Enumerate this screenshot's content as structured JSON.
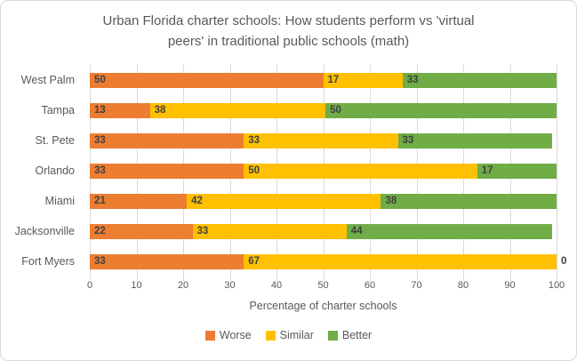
{
  "title": "Urban Florida charter schools: How students perform vs 'virtual peers' in traditional public schools (math)",
  "title_lines": [
    "Urban Florida charter schools: How students perform vs 'virtual",
    "peers' in traditional public schools (math)"
  ],
  "chart_data": {
    "type": "bar",
    "orientation": "horizontal",
    "stacked": true,
    "title": "Urban Florida charter schools: How students perform vs 'virtual peers' in traditional public schools (math)",
    "categories": [
      "West Palm",
      "Tampa",
      "St. Pete",
      "Orlando",
      "Miami",
      "Jacksonville",
      "Fort Myers"
    ],
    "series": [
      {
        "name": "Worse",
        "color": "#ED7D31",
        "values": [
          50,
          13,
          33,
          33,
          21,
          22,
          33
        ]
      },
      {
        "name": "Similar",
        "color": "#FFC000",
        "values": [
          17,
          38,
          33,
          50,
          42,
          33,
          67
        ]
      },
      {
        "name": "Better",
        "color": "#70AD47",
        "values": [
          33,
          50,
          33,
          17,
          38,
          44,
          0
        ]
      }
    ],
    "xlabel": "Percentage of charter schools",
    "ylabel": "",
    "xlim": [
      0,
      100
    ],
    "x_ticks": [
      0,
      10,
      20,
      30,
      40,
      50,
      60,
      70,
      80,
      90,
      100
    ],
    "grid": true,
    "data_labels": "inside-base",
    "legend_position": "bottom"
  },
  "colors": {
    "text": "#595959",
    "data_label": "#404040",
    "gridline": "#D9D9D9",
    "frame_border": "#D7D7D7",
    "background": "#FFFFFF"
  }
}
